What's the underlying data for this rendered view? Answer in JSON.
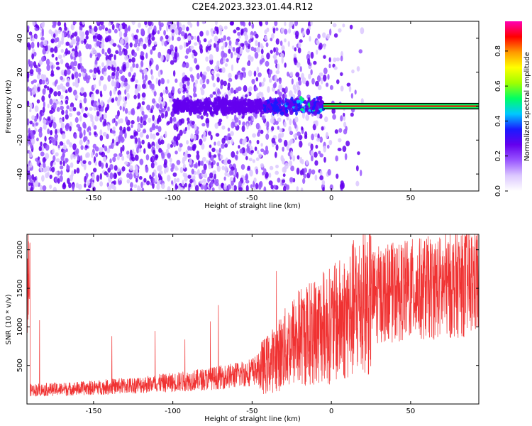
{
  "title": "C2E4.2023.323.01.44.R12",
  "colors": {
    "snr_line": "#f03232",
    "axis": "#000000",
    "colormap": [
      "#ffffff",
      "#dcc8ff",
      "#9955ff",
      "#6400ee",
      "#1a1aff",
      "#00c8ff",
      "#00ff64",
      "#a0ff00",
      "#ffff00",
      "#ff9900",
      "#ff0000",
      "#ff00b4"
    ]
  },
  "chart_data": [
    {
      "type": "heatmap",
      "name": "spectrogram",
      "xlabel": "Height of straight line (km)",
      "ylabel": "Frequency (Hz)",
      "xlim": [
        -192,
        93
      ],
      "ylim": [
        -50,
        50
      ],
      "xticks": [
        -150,
        -100,
        -50,
        0,
        50
      ],
      "yticks": [
        -40,
        -20,
        0,
        20,
        40
      ],
      "colorbar": {
        "label": "Normalized spectral amplitude",
        "range": [
          0.0,
          0.97
        ],
        "ticks": [
          "0.0",
          "0.2",
          "0.4",
          "0.6",
          "0.8"
        ]
      },
      "features": {
        "noise_region_km": [
          -192,
          -5
        ],
        "signal_band_hz": [
          -1.5,
          1.5
        ],
        "signal_onset_km": -100,
        "strong_signal_from_km": -5
      }
    },
    {
      "type": "line",
      "name": "snr",
      "xlabel": "Height of straight line (km)",
      "ylabel": "SNR (10 * v/v)",
      "xlim": [
        -192,
        93
      ],
      "ylim": [
        0,
        2200
      ],
      "xticks": [
        -150,
        -100,
        -50,
        0,
        50
      ],
      "yticks": [
        500,
        1000,
        1500,
        2000
      ],
      "series_points": [
        {
          "x": -190,
          "y": 180
        },
        {
          "x": -175,
          "y": 190
        },
        {
          "x": -160,
          "y": 200
        },
        {
          "x": -150,
          "y": 210
        },
        {
          "x": -140,
          "y": 225
        },
        {
          "x": -130,
          "y": 235
        },
        {
          "x": -120,
          "y": 250
        },
        {
          "x": -110,
          "y": 265
        },
        {
          "x": -100,
          "y": 280
        },
        {
          "x": -90,
          "y": 300
        },
        {
          "x": -80,
          "y": 320
        },
        {
          "x": -70,
          "y": 345
        },
        {
          "x": -60,
          "y": 375
        },
        {
          "x": -50,
          "y": 420
        },
        {
          "x": -45,
          "y": 460
        },
        {
          "x": -40,
          "y": 520
        },
        {
          "x": -35,
          "y": 600
        },
        {
          "x": -30,
          "y": 700
        },
        {
          "x": -25,
          "y": 800
        },
        {
          "x": -20,
          "y": 880
        },
        {
          "x": -15,
          "y": 900
        },
        {
          "x": -10,
          "y": 960
        },
        {
          "x": -5,
          "y": 1000
        },
        {
          "x": 0,
          "y": 1020
        },
        {
          "x": 5,
          "y": 1080
        },
        {
          "x": 10,
          "y": 1150
        },
        {
          "x": 15,
          "y": 1250
        },
        {
          "x": 20,
          "y": 1320
        },
        {
          "x": 25,
          "y": 1380
        },
        {
          "x": 30,
          "y": 1420
        },
        {
          "x": 40,
          "y": 1450
        },
        {
          "x": 50,
          "y": 1480
        },
        {
          "x": 60,
          "y": 1500
        },
        {
          "x": 70,
          "y": 1520
        },
        {
          "x": 80,
          "y": 1560
        },
        {
          "x": 93,
          "y": 1600
        }
      ]
    }
  ]
}
